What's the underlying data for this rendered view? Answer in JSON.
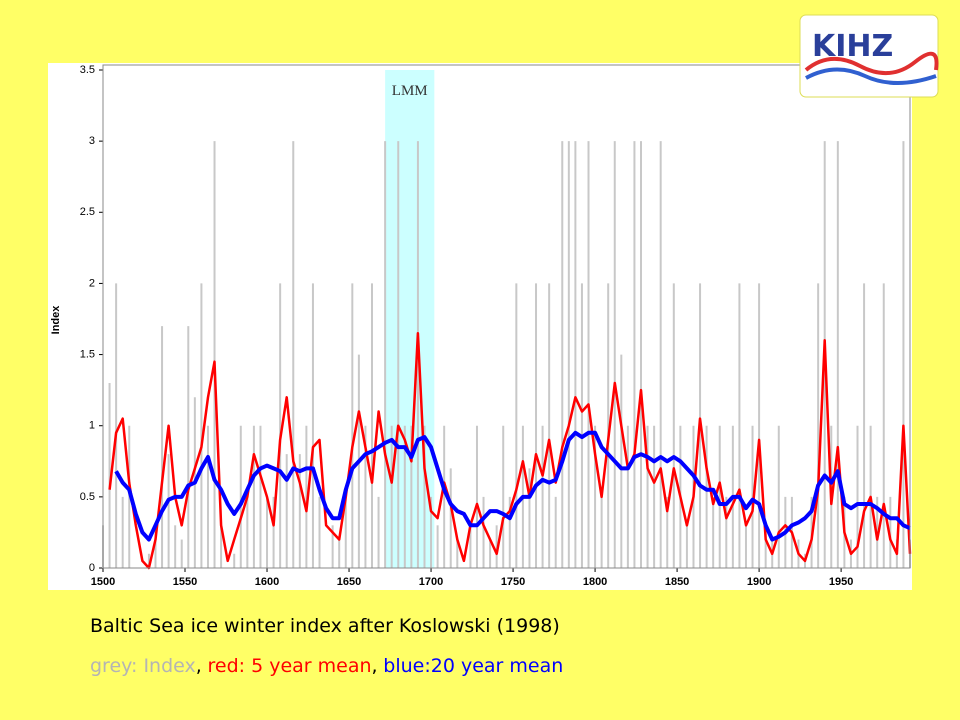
{
  "chart_data": {
    "type": "line",
    "title": "Baltic Sea ice winter index after Koslowski (1998)",
    "y_label": "Index",
    "logo": "KIHZ",
    "shaded_regions": [
      {
        "label": "LMM",
        "start": 1672,
        "end": 1702,
        "color": "#ccffff"
      }
    ],
    "xlim": [
      1500,
      1992
    ],
    "xticks": [
      1500,
      1550,
      1600,
      1650,
      1700,
      1750,
      1800,
      1850,
      1900,
      1950
    ],
    "ylim": [
      0,
      3.5
    ],
    "yticks": [
      0,
      0.5,
      1,
      1.5,
      2,
      2.5,
      3,
      3.5
    ],
    "x": [
      1500,
      1504,
      1508,
      1512,
      1516,
      1520,
      1524,
      1528,
      1532,
      1536,
      1540,
      1544,
      1548,
      1552,
      1556,
      1560,
      1564,
      1568,
      1572,
      1576,
      1580,
      1584,
      1588,
      1592,
      1596,
      1600,
      1604,
      1608,
      1612,
      1616,
      1620,
      1624,
      1628,
      1632,
      1636,
      1640,
      1644,
      1648,
      1652,
      1656,
      1660,
      1664,
      1668,
      1672,
      1676,
      1680,
      1684,
      1688,
      1692,
      1696,
      1700,
      1704,
      1708,
      1712,
      1716,
      1720,
      1724,
      1728,
      1732,
      1736,
      1740,
      1744,
      1748,
      1752,
      1756,
      1760,
      1764,
      1768,
      1772,
      1776,
      1780,
      1784,
      1788,
      1792,
      1796,
      1800,
      1804,
      1808,
      1812,
      1816,
      1820,
      1824,
      1828,
      1832,
      1836,
      1840,
      1844,
      1848,
      1852,
      1856,
      1860,
      1864,
      1868,
      1872,
      1876,
      1880,
      1884,
      1888,
      1892,
      1896,
      1900,
      1904,
      1908,
      1912,
      1916,
      1920,
      1924,
      1928,
      1932,
      1936,
      1940,
      1944,
      1948,
      1952,
      1956,
      1960,
      1964,
      1968,
      1972,
      1976,
      1980,
      1984,
      1988,
      1992
    ],
    "series": [
      {
        "name": "grey: Index",
        "color": "#c8c8c8",
        "style": "bars",
        "values": [
          0.3,
          1.3,
          2,
          0.5,
          1,
          0,
          0,
          0.1,
          0.3,
          1.7,
          0.8,
          0.3,
          0.2,
          1.7,
          1.2,
          2,
          1,
          3,
          0.3,
          0,
          0.1,
          1,
          0.5,
          1,
          1,
          0.5,
          0.5,
          2,
          0.8,
          3,
          0.8,
          1,
          2,
          0.5,
          0,
          0.3,
          0.2,
          0.5,
          2,
          1.5,
          1,
          2,
          0.5,
          3,
          1,
          3,
          1,
          1,
          3,
          1,
          0.5,
          0.3,
          1,
          0.7,
          0.2,
          0,
          0.3,
          1,
          0.5,
          0.2,
          0.3,
          1,
          0.5,
          2,
          1,
          0.7,
          2,
          1,
          2,
          0.5,
          3,
          3,
          3,
          2,
          3,
          1,
          0.5,
          2,
          3,
          1.5,
          1,
          3,
          3,
          1,
          1,
          3,
          0.5,
          2,
          1,
          0.3,
          1,
          2,
          1,
          0.5,
          1,
          0.5,
          1,
          2,
          0.3,
          1,
          2,
          0.3,
          0.2,
          1,
          0.5,
          0.5,
          0.2,
          0.1,
          0.5,
          2,
          3,
          1,
          3,
          0.5,
          0.2,
          1,
          2,
          1,
          0.5,
          2,
          0.5,
          0.2,
          3,
          0.2
        ]
      },
      {
        "name": "red: 5 year mean",
        "color": "#ff0000",
        "style": "line",
        "values": [
          null,
          0.55,
          0.95,
          1.05,
          0.6,
          0.3,
          0.05,
          0,
          0.2,
          0.6,
          1,
          0.5,
          0.3,
          0.55,
          0.7,
          0.85,
          1.2,
          1.45,
          0.3,
          0.05,
          0.2,
          0.35,
          0.5,
          0.8,
          0.65,
          0.5,
          0.3,
          0.9,
          1.2,
          0.75,
          0.6,
          0.4,
          0.85,
          0.9,
          0.3,
          0.25,
          0.2,
          0.5,
          0.85,
          1.1,
          0.85,
          0.6,
          1.1,
          0.8,
          0.6,
          1,
          0.9,
          0.75,
          1.65,
          0.7,
          0.4,
          0.35,
          0.6,
          0.45,
          0.2,
          0.05,
          0.3,
          0.45,
          0.3,
          0.2,
          0.1,
          0.35,
          0.4,
          0.55,
          0.75,
          0.5,
          0.8,
          0.65,
          0.9,
          0.6,
          0.85,
          1,
          1.2,
          1.1,
          1.15,
          0.8,
          0.5,
          0.9,
          1.3,
          1,
          0.7,
          0.8,
          1.25,
          0.7,
          0.6,
          0.7,
          0.4,
          0.7,
          0.5,
          0.3,
          0.5,
          1.05,
          0.7,
          0.45,
          0.6,
          0.35,
          0.45,
          0.55,
          0.3,
          0.4,
          0.9,
          0.2,
          0.1,
          0.25,
          0.3,
          0.25,
          0.1,
          0.05,
          0.2,
          0.55,
          1.6,
          0.45,
          0.85,
          0.25,
          0.1,
          0.15,
          0.4,
          0.5,
          0.2,
          0.45,
          0.2,
          0.1,
          1,
          0.1
        ]
      },
      {
        "name": "blue:20 year mean",
        "color": "#0000ff",
        "style": "line",
        "values": [
          null,
          null,
          0.68,
          0.6,
          0.55,
          0.38,
          0.25,
          0.2,
          0.3,
          0.4,
          0.48,
          0.5,
          0.5,
          0.58,
          0.6,
          0.7,
          0.78,
          0.62,
          0.55,
          0.45,
          0.38,
          0.45,
          0.55,
          0.65,
          0.7,
          0.72,
          0.7,
          0.68,
          0.62,
          0.7,
          0.68,
          0.7,
          0.7,
          0.55,
          0.42,
          0.35,
          0.35,
          0.55,
          0.7,
          0.75,
          0.8,
          0.82,
          0.85,
          0.88,
          0.9,
          0.85,
          0.85,
          0.78,
          0.9,
          0.92,
          0.85,
          0.7,
          0.55,
          0.45,
          0.4,
          0.38,
          0.3,
          0.3,
          0.35,
          0.4,
          0.4,
          0.38,
          0.35,
          0.45,
          0.5,
          0.5,
          0.58,
          0.62,
          0.6,
          0.62,
          0.75,
          0.9,
          0.95,
          0.92,
          0.95,
          0.95,
          0.85,
          0.8,
          0.75,
          0.7,
          0.7,
          0.78,
          0.8,
          0.78,
          0.75,
          0.78,
          0.75,
          0.78,
          0.75,
          0.7,
          0.65,
          0.58,
          0.55,
          0.55,
          0.45,
          0.45,
          0.5,
          0.5,
          0.42,
          0.48,
          0.45,
          0.3,
          0.2,
          0.22,
          0.25,
          0.3,
          0.32,
          0.35,
          0.4,
          0.58,
          0.65,
          0.6,
          0.68,
          0.45,
          0.42,
          0.45,
          0.45,
          0.45,
          0.42,
          0.38,
          0.35,
          0.35,
          0.3,
          0.28
        ]
      }
    ]
  }
}
